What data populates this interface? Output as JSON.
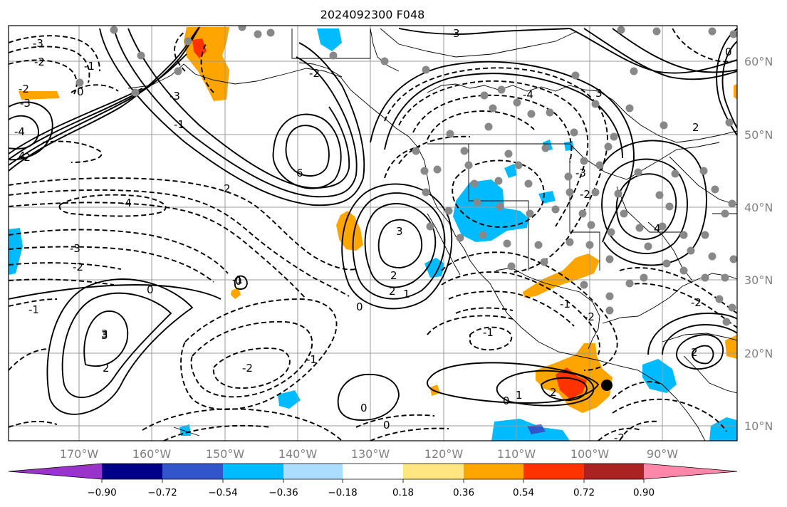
{
  "title": "2024092300 F048",
  "map": {
    "lat_labels": [
      "60°N",
      "50°N",
      "40°N",
      "30°N",
      "20°N",
      "10°N"
    ],
    "lon_labels": [
      "170°W",
      "160°W",
      "150°W",
      "140°W",
      "130°W",
      "120°W",
      "110°W",
      "100°W",
      "90°W"
    ],
    "contour_labels": [
      "-3",
      "-2",
      "0",
      "-1",
      "-3",
      "-2",
      "-4",
      "-2",
      "-3",
      "3",
      "-1",
      "0",
      "-1",
      "-2",
      "6",
      "3",
      "-4",
      "-3",
      "-2",
      "-1",
      "2",
      "4",
      "-4",
      "0",
      "2",
      "3",
      "2",
      "1",
      "0",
      "2",
      "-1",
      "-3",
      "-2",
      "-2",
      "-1",
      "-2",
      "0",
      "3",
      "2",
      "0",
      "0",
      "1",
      "-1",
      "0",
      "-2",
      "2",
      "4",
      "3",
      "-2",
      "2"
    ],
    "marker": "black-dot"
  },
  "colorbar": {
    "colors": [
      "#9933cc",
      "#000088",
      "#3355cc",
      "#00bbff",
      "#aaddff",
      "#ffffff",
      "#ffe680",
      "#ffa500",
      "#ff3300",
      "#aa2222",
      "#ff88aa"
    ],
    "tick_labels": [
      "−0.90",
      "−0.72",
      "−0.54",
      "−0.36",
      "−0.18",
      "0.18",
      "0.36",
      "0.54",
      "0.72",
      "0.90"
    ]
  }
}
